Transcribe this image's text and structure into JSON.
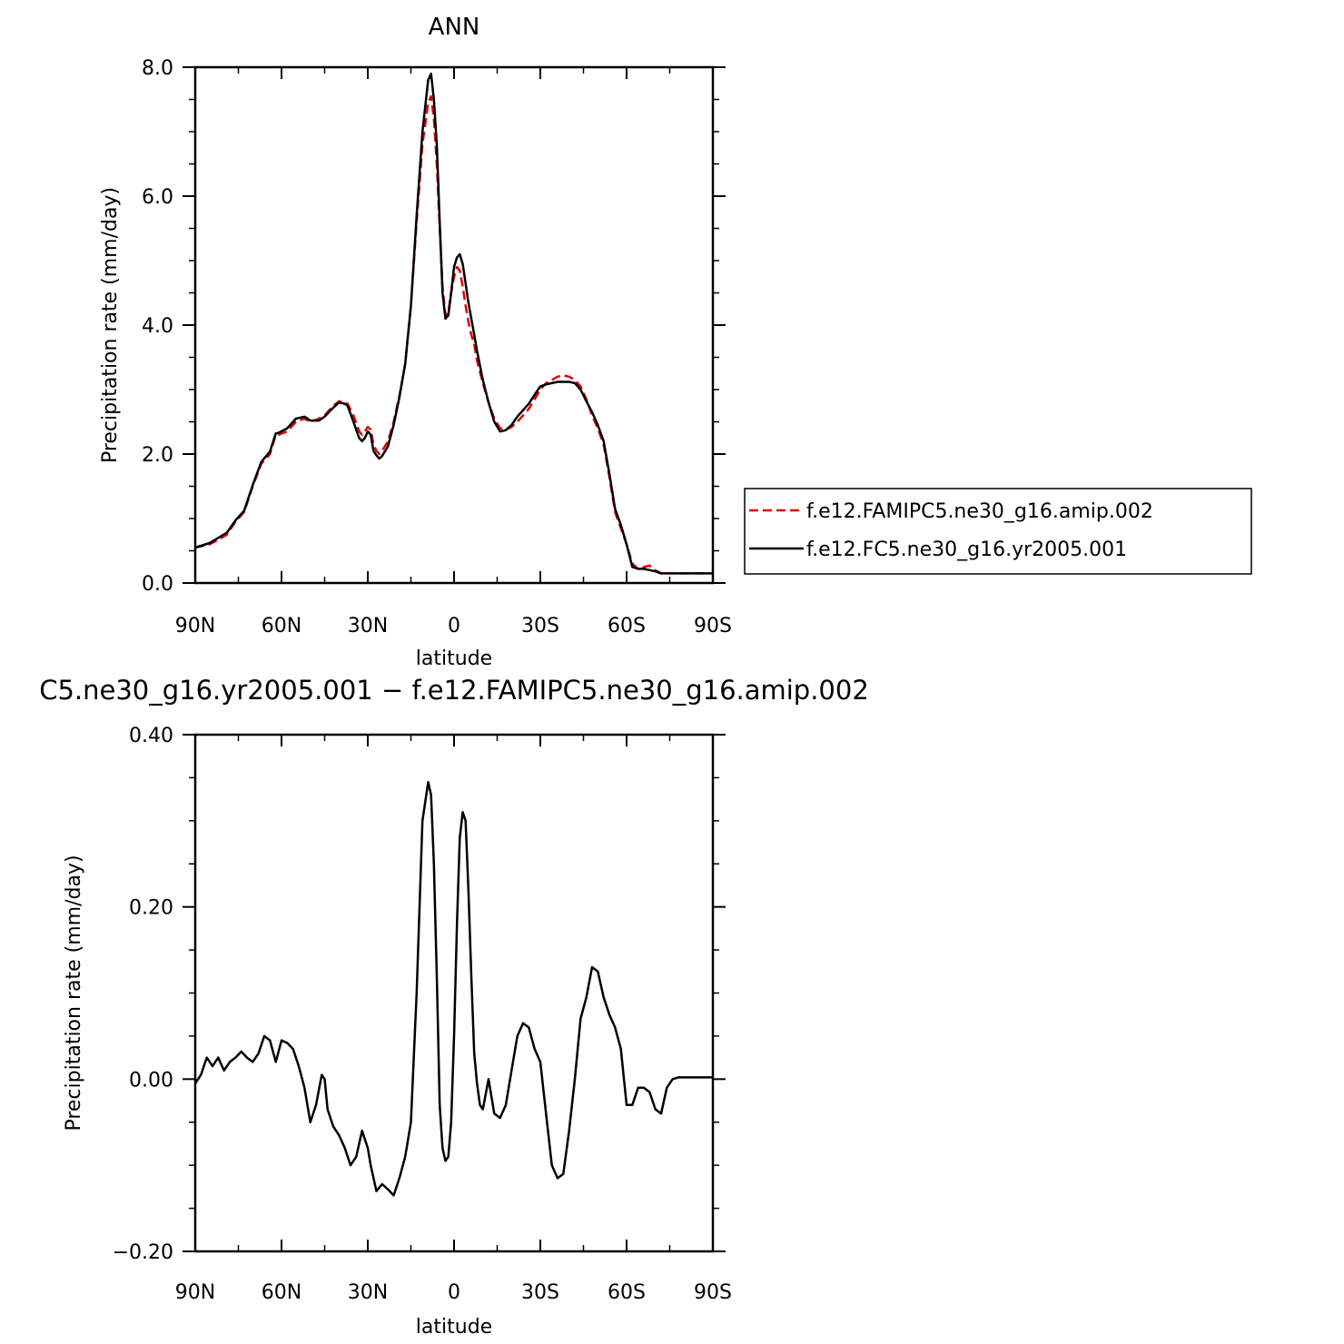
{
  "chart_data": [
    {
      "type": "line",
      "title": "ANN",
      "xlabel": "latitude",
      "ylabel": "Precipitation rate (mm/day)",
      "xlim": [
        90,
        -90
      ],
      "ylim": [
        0,
        8
      ],
      "x_ticks": [
        {
          "value": 90,
          "label": "90N"
        },
        {
          "value": 60,
          "label": "60N"
        },
        {
          "value": 30,
          "label": "30N"
        },
        {
          "value": 0,
          "label": "0"
        },
        {
          "value": -30,
          "label": "30S"
        },
        {
          "value": -60,
          "label": "60S"
        },
        {
          "value": -90,
          "label": "90S"
        }
      ],
      "y_ticks": [
        {
          "value": 0,
          "label": "0.0"
        },
        {
          "value": 2,
          "label": "2.0"
        },
        {
          "value": 4,
          "label": "4.0"
        },
        {
          "value": 6,
          "label": "6.0"
        },
        {
          "value": 8,
          "label": "8.0"
        }
      ],
      "legend_position": "right",
      "series": [
        {
          "name": "f.e12.FAMIPC5.ne30_g16.amip.002",
          "color": "#e00000",
          "style": "dashed",
          "x": [
            90,
            85,
            82,
            79,
            76,
            73,
            70,
            67,
            64,
            62,
            61,
            58,
            55,
            52,
            50,
            47,
            45,
            42,
            40,
            38,
            37,
            35,
            33,
            32,
            31,
            30,
            29,
            28,
            27,
            26,
            25,
            23,
            21,
            19,
            17,
            15,
            13,
            11,
            9,
            8,
            7,
            6,
            5,
            4,
            3,
            2,
            1,
            0,
            -1,
            -2,
            -3,
            -4,
            -5,
            -6,
            -7,
            -8,
            -10,
            -12,
            -14,
            -16,
            -18,
            -20,
            -22,
            -24,
            -26,
            -28,
            -30,
            -32,
            -34,
            -36,
            -38,
            -40,
            -42,
            -44,
            -46,
            -48,
            -50,
            -52,
            -54,
            -56,
            -58,
            -60,
            -62,
            -64,
            -66,
            -68,
            -70,
            -72,
            -74,
            -76,
            -78,
            -80,
            -82,
            -84,
            -86,
            -88,
            -90
          ],
          "y": [
            0.55,
            0.6,
            0.67,
            0.75,
            0.95,
            1.1,
            1.5,
            1.85,
            2.0,
            2.3,
            2.3,
            2.35,
            2.5,
            2.55,
            2.5,
            2.55,
            2.6,
            2.75,
            2.82,
            2.8,
            2.78,
            2.6,
            2.35,
            2.3,
            2.35,
            2.42,
            2.38,
            2.15,
            2.05,
            2.0,
            2.05,
            2.2,
            2.5,
            2.9,
            3.4,
            4.3,
            5.6,
            6.8,
            7.45,
            7.55,
            7.2,
            6.5,
            5.5,
            4.6,
            4.15,
            4.2,
            4.5,
            4.75,
            4.9,
            4.85,
            4.6,
            4.3,
            4.05,
            3.85,
            3.7,
            3.45,
            3.1,
            2.8,
            2.55,
            2.4,
            2.38,
            2.42,
            2.5,
            2.6,
            2.7,
            2.85,
            3.0,
            3.1,
            3.15,
            3.2,
            3.22,
            3.2,
            3.15,
            3.05,
            2.85,
            2.6,
            2.4,
            2.15,
            1.65,
            1.1,
            0.85,
            0.6,
            0.3,
            0.22,
            0.25,
            0.27,
            0.2,
            0.15,
            0.15,
            0.15,
            0.15,
            0.15,
            0.15,
            0.15,
            0.15,
            0.15,
            0.15
          ]
        },
        {
          "name": "f.e12.FC5.ne30_g16.yr2005.001",
          "color": "#000000",
          "style": "solid",
          "x": [
            90,
            85,
            82,
            79,
            76,
            73,
            70,
            67,
            64,
            62,
            61,
            58,
            55,
            52,
            50,
            47,
            45,
            42,
            40,
            38,
            37,
            35,
            33,
            32,
            31,
            30,
            29,
            28,
            27,
            26,
            25,
            23,
            21,
            19,
            17,
            15,
            13,
            11,
            9,
            8,
            7,
            6,
            5,
            4,
            3,
            2,
            1,
            0,
            -1,
            -2,
            -3,
            -4,
            -5,
            -6,
            -7,
            -8,
            -10,
            -12,
            -14,
            -16,
            -18,
            -20,
            -22,
            -24,
            -26,
            -28,
            -30,
            -32,
            -34,
            -36,
            -38,
            -40,
            -42,
            -44,
            -46,
            -48,
            -50,
            -52,
            -54,
            -56,
            -58,
            -60,
            -62,
            -64,
            -66,
            -68,
            -70,
            -72,
            -74,
            -76,
            -78,
            -80,
            -82,
            -84,
            -86,
            -88,
            -90
          ],
          "y": [
            0.55,
            0.62,
            0.7,
            0.78,
            0.97,
            1.12,
            1.52,
            1.88,
            2.04,
            2.32,
            2.33,
            2.4,
            2.55,
            2.58,
            2.52,
            2.52,
            2.58,
            2.72,
            2.8,
            2.78,
            2.75,
            2.5,
            2.25,
            2.2,
            2.25,
            2.35,
            2.3,
            2.05,
            1.98,
            1.93,
            1.97,
            2.12,
            2.45,
            2.88,
            3.4,
            4.3,
            5.7,
            7.0,
            7.8,
            7.9,
            7.5,
            6.8,
            5.6,
            4.5,
            4.1,
            4.15,
            4.5,
            4.9,
            5.05,
            5.1,
            4.95,
            4.65,
            4.35,
            4.1,
            3.85,
            3.6,
            3.15,
            2.8,
            2.5,
            2.35,
            2.37,
            2.45,
            2.58,
            2.68,
            2.78,
            2.92,
            3.05,
            3.08,
            3.1,
            3.12,
            3.12,
            3.12,
            3.1,
            3.0,
            2.82,
            2.65,
            2.45,
            2.2,
            1.7,
            1.15,
            0.9,
            0.6,
            0.25,
            0.22,
            0.22,
            0.2,
            0.18,
            0.15,
            0.15,
            0.15,
            0.15,
            0.15,
            0.15,
            0.15,
            0.15,
            0.15,
            0.15
          ]
        }
      ]
    },
    {
      "type": "line",
      "title": "C5.ne30_g16.yr2005.001 − f.e12.FAMIPC5.ne30_g16.amip.002",
      "xlabel": "latitude",
      "ylabel": "Precipitation rate (mm/day)",
      "xlim": [
        90,
        -90
      ],
      "ylim": [
        -0.2,
        0.4
      ],
      "x_ticks": [
        {
          "value": 90,
          "label": "90N"
        },
        {
          "value": 60,
          "label": "60N"
        },
        {
          "value": 30,
          "label": "30N"
        },
        {
          "value": 0,
          "label": "0"
        },
        {
          "value": -30,
          "label": "30S"
        },
        {
          "value": -60,
          "label": "60S"
        },
        {
          "value": -90,
          "label": "90S"
        }
      ],
      "y_ticks": [
        {
          "value": -0.2,
          "label": "−0.20"
        },
        {
          "value": 0,
          "label": "0.00"
        },
        {
          "value": 0.2,
          "label": "0.20"
        },
        {
          "value": 0.4,
          "label": "0.40"
        }
      ],
      "series": [
        {
          "color": "#000000",
          "style": "solid",
          "x": [
            90,
            88,
            86,
            84,
            82,
            80,
            78,
            76,
            74,
            72,
            70,
            68,
            66,
            64,
            62,
            60,
            58,
            56,
            54,
            52,
            50,
            48,
            46,
            45,
            44,
            42,
            40,
            38,
            36,
            34,
            32,
            30,
            29,
            27,
            25,
            23,
            21,
            19,
            17,
            15,
            13,
            11,
            9,
            8,
            7,
            6,
            5,
            4,
            3,
            2,
            1,
            0,
            -1,
            -2,
            -3,
            -4,
            -5,
            -6,
            -7,
            -8,
            -9,
            -10,
            -12,
            -14,
            -16,
            -18,
            -20,
            -22,
            -24,
            -26,
            -28,
            -30,
            -32,
            -34,
            -36,
            -38,
            -40,
            -42,
            -44,
            -46,
            -48,
            -50,
            -52,
            -54,
            -56,
            -58,
            -60,
            -62,
            -64,
            -66,
            -68,
            -70,
            -72,
            -74,
            -76,
            -78,
            -80,
            -82,
            -84,
            -86,
            -88,
            -89,
            -90
          ],
          "y": [
            -0.005,
            0.005,
            0.025,
            0.015,
            0.025,
            0.01,
            0.02,
            0.025,
            0.032,
            0.025,
            0.02,
            0.03,
            0.05,
            0.045,
            0.02,
            0.045,
            0.042,
            0.035,
            0.015,
            -0.01,
            -0.05,
            -0.03,
            0.005,
            0.0,
            -0.035,
            -0.055,
            -0.065,
            -0.08,
            -0.1,
            -0.09,
            -0.06,
            -0.08,
            -0.1,
            -0.13,
            -0.122,
            -0.128,
            -0.135,
            -0.115,
            -0.09,
            -0.05,
            0.1,
            0.3,
            0.345,
            0.33,
            0.25,
            0.12,
            -0.03,
            -0.08,
            -0.095,
            -0.09,
            -0.05,
            0.05,
            0.18,
            0.28,
            0.31,
            0.3,
            0.22,
            0.12,
            0.03,
            -0.005,
            -0.03,
            -0.035,
            0.0,
            -0.04,
            -0.045,
            -0.03,
            0.01,
            0.05,
            0.065,
            0.06,
            0.035,
            0.02,
            -0.04,
            -0.1,
            -0.115,
            -0.11,
            -0.06,
            0.0,
            0.07,
            0.095,
            0.13,
            0.125,
            0.095,
            0.075,
            0.06,
            0.035,
            -0.03,
            -0.03,
            -0.01,
            -0.01,
            -0.015,
            -0.035,
            -0.04,
            -0.01,
            0.0,
            0.002,
            0.002,
            0.002,
            0.002,
            0.002,
            0.002,
            0.002,
            0.002
          ]
        }
      ]
    }
  ]
}
